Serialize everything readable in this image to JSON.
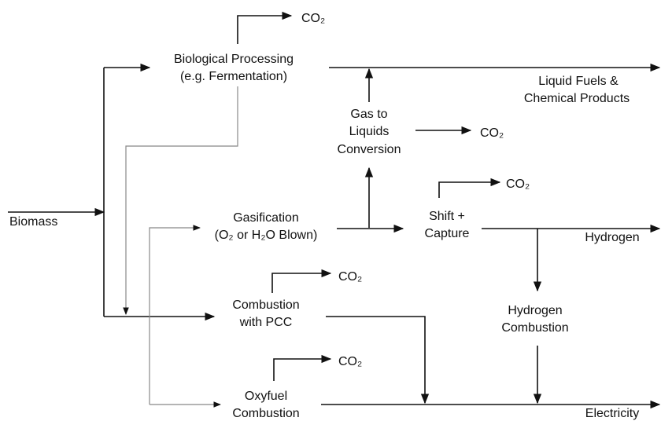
{
  "input": "Biomass",
  "processes": [
    {
      "label": [
        "Biological Processing",
        "(e.g. Fermentation)"
      ],
      "emission": "CO₂"
    },
    {
      "label": [
        "Gas to",
        "Liquids",
        "Conversion"
      ],
      "emission": "CO₂"
    },
    {
      "label": [
        "Gasification",
        "(O₂ or H₂O Blown)"
      ]
    },
    {
      "label": [
        "Shift +",
        "Capture"
      ],
      "emission": "CO₂"
    },
    {
      "label": [
        "Combustion",
        "with PCC"
      ],
      "emission": "CO₂"
    },
    {
      "label": [
        "Oxyfuel",
        "Combustion"
      ],
      "emission": "CO₂"
    },
    {
      "label": [
        "Hydrogen",
        "Combustion"
      ]
    }
  ],
  "products": [
    {
      "label": [
        "Liquid Fuels &",
        "Chemical Products"
      ]
    },
    {
      "label": [
        "Hydrogen"
      ]
    },
    {
      "label": [
        "Electricity"
      ]
    }
  ]
}
